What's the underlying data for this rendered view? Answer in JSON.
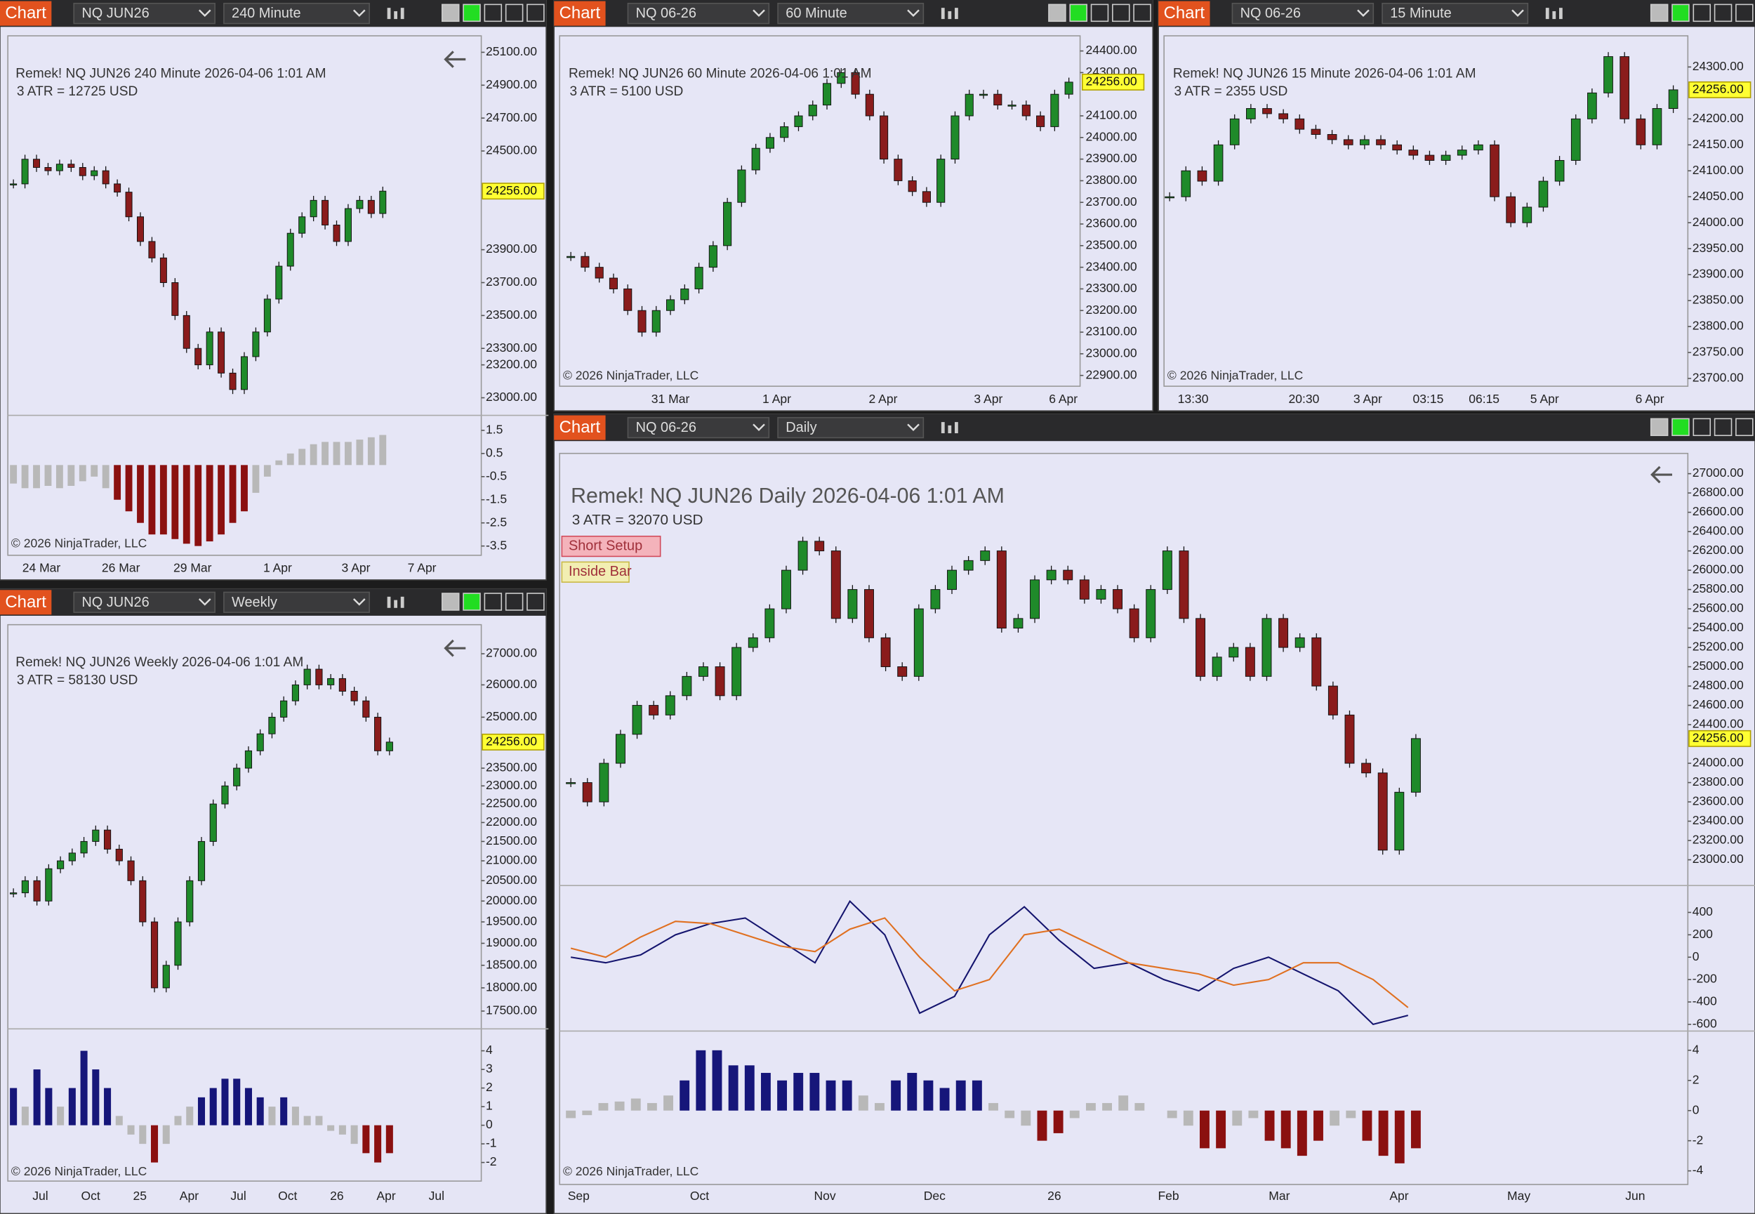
{
  "panels": [
    {
      "toolbar": {
        "label": "Chart",
        "symbol": "NQ JUN26",
        "interval": "240 Minute"
      },
      "info": "Remek!  NQ JUN26  240 Minute  2026-04-06 1:01 AM",
      "atr": "3 ATR = 12725 USD",
      "copyright": "© 2026 NinjaTrader, LLC",
      "last_price": {
        "value": 24256,
        "label": "24256.00"
      },
      "price": {
        "log": false,
        "ylim": [
          22900,
          25200
        ],
        "yticks": [
          {
            "value": 25100,
            "label": "25100.00"
          },
          {
            "value": 24900,
            "label": "24900.00"
          },
          {
            "value": 24700,
            "label": "24700.00"
          },
          {
            "value": 24500,
            "label": "24500.00"
          },
          {
            "value": 23900,
            "label": "23900.00"
          },
          {
            "value": 23700,
            "label": "23700.00"
          },
          {
            "value": 23500,
            "label": "23500.00"
          },
          {
            "value": 23300,
            "label": "23300.00"
          },
          {
            "value": 23200,
            "label": "23200.00"
          },
          {
            "value": 23000,
            "label": "23000.00"
          }
        ],
        "values": [
          24300,
          24450,
          24400,
          24380,
          24420,
          24400,
          24350,
          24380,
          24300,
          24250,
          24100,
          23950,
          23850,
          23700,
          23500,
          23300,
          23200,
          23400,
          23150,
          23050,
          23250,
          23400,
          23600,
          23800,
          24000,
          24100,
          24200,
          24050,
          23950,
          24150,
          24200,
          24120,
          24256
        ]
      },
      "histogram": {
        "ylim": [
          -3.9,
          2.1
        ],
        "yticks": [
          1.5,
          0.5,
          -0.5,
          -1.5,
          -2.5,
          -3.5
        ],
        "values": [
          -0.8,
          -1,
          -1,
          -0.9,
          -1,
          -0.9,
          -0.7,
          -0.5,
          -1,
          -1.5,
          -2,
          -2.5,
          -3,
          -3,
          -3.2,
          -3.4,
          -3.5,
          -3.3,
          -3,
          -2.5,
          -2,
          -1.2,
          -0.5,
          0.2,
          0.5,
          0.7,
          0.9,
          1,
          1,
          1,
          1.1,
          1.2,
          1.3
        ]
      },
      "x_labels": [
        "24 Mar",
        "26 Mar",
        "29 Mar",
        "1 Apr",
        "3 Apr",
        "7 Apr"
      ]
    },
    {
      "toolbar": {
        "label": "Chart",
        "symbol": "NQ 06-26",
        "interval": "60 Minute"
      },
      "info": "Remek!  NQ JUN26  60 Minute  2026-04-06 1:01 AM",
      "atr": "3 ATR = 5100 USD",
      "copyright": "© 2026 NinjaTrader, LLC",
      "last_price": {
        "value": 24256,
        "label": "24256.00"
      },
      "price": {
        "log": false,
        "ylim": [
          22850,
          24470
        ],
        "yticks": [
          {
            "value": 24400,
            "label": "24400.00"
          },
          {
            "value": 24300,
            "label": "24300.00"
          },
          {
            "value": 24100,
            "label": "24100.00"
          },
          {
            "value": 24000,
            "label": "24000.00"
          },
          {
            "value": 23900,
            "label": "23900.00"
          },
          {
            "value": 23800,
            "label": "23800.00"
          },
          {
            "value": 23700,
            "label": "23700.00"
          },
          {
            "value": 23600,
            "label": "23600.00"
          },
          {
            "value": 23500,
            "label": "23500.00"
          },
          {
            "value": 23400,
            "label": "23400.00"
          },
          {
            "value": 23300,
            "label": "23300.00"
          },
          {
            "value": 23200,
            "label": "23200.00"
          },
          {
            "value": 23100,
            "label": "23100.00"
          },
          {
            "value": 23000,
            "label": "23000.00"
          },
          {
            "value": 22900,
            "label": "22900.00"
          }
        ],
        "values": [
          23450,
          23400,
          23350,
          23300,
          23200,
          23100,
          23200,
          23250,
          23300,
          23400,
          23500,
          23700,
          23850,
          23950,
          24000,
          24050,
          24100,
          24150,
          24250,
          24300,
          24200,
          24100,
          23900,
          23800,
          23750,
          23700,
          23900,
          24100,
          24200,
          24200,
          24150,
          24150,
          24100,
          24050,
          24200,
          24256
        ]
      },
      "x_labels": [
        "31 Mar",
        "1 Apr",
        "2 Apr",
        "3 Apr",
        "6 Apr"
      ]
    },
    {
      "toolbar": {
        "label": "Chart",
        "symbol": "NQ 06-26",
        "interval": "15 Minute"
      },
      "info": "Remek!  NQ JUN26  15 Minute  2026-04-06 1:01 AM",
      "atr": "3 ATR = 2355 USD",
      "copyright": "© 2026 NinjaTrader, LLC",
      "last_price": {
        "value": 24256,
        "label": "24256.00"
      },
      "price": {
        "log": false,
        "ylim": [
          23685,
          24360
        ],
        "yticks": [
          {
            "value": 24300,
            "label": "24300.00"
          },
          {
            "value": 24200,
            "label": "24200.00"
          },
          {
            "value": 24150,
            "label": "24150.00"
          },
          {
            "value": 24100,
            "label": "24100.00"
          },
          {
            "value": 24050,
            "label": "24050.00"
          },
          {
            "value": 24000,
            "label": "24000.00"
          },
          {
            "value": 23950,
            "label": "23950.00"
          },
          {
            "value": 23900,
            "label": "23900.00"
          },
          {
            "value": 23850,
            "label": "23850.00"
          },
          {
            "value": 23800,
            "label": "23800.00"
          },
          {
            "value": 23750,
            "label": "23750.00"
          },
          {
            "value": 23700,
            "label": "23700.00"
          }
        ],
        "values": [
          24050,
          24100,
          24080,
          24150,
          24200,
          24220,
          24210,
          24200,
          24180,
          24170,
          24160,
          24150,
          24160,
          24150,
          24140,
          24130,
          24120,
          24130,
          24140,
          24150,
          24050,
          24000,
          24030,
          24080,
          24120,
          24200,
          24250,
          24320,
          24200,
          24150,
          24220,
          24256
        ]
      },
      "x_labels": [
        "13:30",
        "20:30",
        "3 Apr",
        "03:15",
        "06:15",
        "5 Apr",
        "6 Apr"
      ]
    },
    {
      "toolbar": {
        "label": "Chart",
        "symbol": "NQ JUN26",
        "interval": "Weekly"
      },
      "info": "Remek!  NQ JUN26  Weekly  2026-04-06 1:01 AM",
      "atr": "3 ATR = 58130 USD",
      "copyright": "© 2026 NinjaTrader, LLC",
      "last_price": {
        "value": 24256,
        "label": "24256.00"
      },
      "price": {
        "log": true,
        "ylim": [
          17150,
          27970
        ],
        "yticks": [
          {
            "value": 27000,
            "label": "27000.00"
          },
          {
            "value": 26000,
            "label": "26000.00"
          },
          {
            "value": 25000,
            "label": "25000.00"
          },
          {
            "value": 23500,
            "label": "23500.00"
          },
          {
            "value": 23000,
            "label": "23000.00"
          },
          {
            "value": 22500,
            "label": "22500.00"
          },
          {
            "value": 22000,
            "label": "22000.00"
          },
          {
            "value": 21500,
            "label": "21500.00"
          },
          {
            "value": 21000,
            "label": "21000.00"
          },
          {
            "value": 20500,
            "label": "20500.00"
          },
          {
            "value": 20000,
            "label": "20000.00"
          },
          {
            "value": 19500,
            "label": "19500.00"
          },
          {
            "value": 19000,
            "label": "19000.00"
          },
          {
            "value": 18500,
            "label": "18500.00"
          },
          {
            "value": 18000,
            "label": "18000.00"
          },
          {
            "value": 17500,
            "label": "17500.00"
          }
        ],
        "values": [
          20200,
          20500,
          20000,
          20800,
          21000,
          21200,
          21500,
          21800,
          21300,
          21000,
          20500,
          19500,
          18000,
          18500,
          19500,
          20500,
          21500,
          22500,
          23000,
          23500,
          24000,
          24500,
          25000,
          25500,
          26000,
          26500,
          26000,
          26200,
          25800,
          25500,
          25000,
          24000,
          24256
        ]
      },
      "histogram": {
        "ylim": [
          -3,
          5
        ],
        "yticks": [
          4,
          3,
          2,
          1,
          0,
          -1,
          -2
        ],
        "values": [
          2,
          1,
          3,
          2,
          1,
          2,
          4,
          3,
          2,
          0.5,
          -0.5,
          -1,
          -2,
          -1,
          0.5,
          1,
          1.5,
          2,
          2.5,
          2.5,
          2,
          1.5,
          1,
          1.5,
          1,
          0.5,
          0.5,
          -0.3,
          -0.5,
          -1,
          -1.5,
          -2,
          -1.5
        ]
      },
      "x_labels": [
        "Jul",
        "Oct",
        "25",
        "Apr",
        "Jul",
        "Oct",
        "26",
        "Apr",
        "Jul"
      ]
    },
    {
      "toolbar": {
        "label": "Chart",
        "symbol": "NQ 06-26",
        "interval": "Daily"
      },
      "info": "Remek!  NQ JUN26  Daily  2026-04-06 1:01 AM",
      "atr": "3 ATR = 32070 USD",
      "copyright": "© 2026 NinjaTrader, LLC",
      "signals": [
        "Short Setup",
        "Inside Bar"
      ],
      "last_price": {
        "value": 24256,
        "label": "24256.00"
      },
      "price": {
        "log": false,
        "ylim": [
          22745,
          27210
        ],
        "yticks": [
          {
            "value": 27000,
            "label": "27000.00"
          },
          {
            "value": 26800,
            "label": "26800.00"
          },
          {
            "value": 26600,
            "label": "26600.00"
          },
          {
            "value": 26400,
            "label": "26400.00"
          },
          {
            "value": 26200,
            "label": "26200.00"
          },
          {
            "value": 26000,
            "label": "26000.00"
          },
          {
            "value": 25800,
            "label": "25800.00"
          },
          {
            "value": 25600,
            "label": "25600.00"
          },
          {
            "value": 25400,
            "label": "25400.00"
          },
          {
            "value": 25200,
            "label": "25200.00"
          },
          {
            "value": 25000,
            "label": "25000.00"
          },
          {
            "value": 24800,
            "label": "24800.00"
          },
          {
            "value": 24600,
            "label": "24600.00"
          },
          {
            "value": 24400,
            "label": "24400.00"
          },
          {
            "value": 24000,
            "label": "24000.00"
          },
          {
            "value": 23800,
            "label": "23800.00"
          },
          {
            "value": 23600,
            "label": "23600.00"
          },
          {
            "value": 23400,
            "label": "23400.00"
          },
          {
            "value": 23200,
            "label": "23200.00"
          },
          {
            "value": 23000,
            "label": "23000.00"
          }
        ],
        "values": [
          23800,
          23600,
          24000,
          24300,
          24600,
          24500,
          24700,
          24900,
          25000,
          24700,
          25200,
          25300,
          25600,
          26000,
          26300,
          26200,
          25500,
          25800,
          25300,
          25000,
          24900,
          25600,
          25800,
          26000,
          26100,
          26200,
          25400,
          25500,
          25900,
          26000,
          25900,
          25700,
          25800,
          25600,
          25300,
          25800,
          26200,
          25500,
          24900,
          25100,
          25200,
          24900,
          25500,
          25200,
          25300,
          24800,
          24500,
          24000,
          23900,
          23100,
          23700,
          24256
        ]
      },
      "oscillator": {
        "ylim": [
          -650,
          630
        ],
        "yticks": [
          400,
          200,
          0,
          -200,
          -400,
          -600
        ],
        "series": [
          {
            "color": "#14146e",
            "values": [
              0,
              -50,
              20,
              200,
              300,
              350,
              150,
              -50,
              500,
              200,
              -500,
              -350,
              200,
              450,
              150,
              -100,
              -50,
              -200,
              -300,
              -100,
              0,
              -150,
              -300,
              -600,
              -520
            ]
          },
          {
            "color": "#e07020",
            "values": [
              80,
              0,
              180,
              320,
              300,
              200,
              100,
              50,
              250,
              350,
              0,
              -300,
              -200,
              200,
              250,
              100,
              -50,
              -100,
              -150,
              -250,
              -200,
              -50,
              -50,
              -200,
              -450
            ]
          }
        ]
      },
      "histogram": {
        "ylim": [
          -4.9,
          5.2
        ],
        "yticks": [
          4,
          2,
          0,
          -2,
          -4
        ],
        "values": [
          -0.5,
          -0.3,
          0.5,
          0.6,
          0.8,
          0.5,
          1,
          2,
          4,
          4,
          3,
          3,
          2.5,
          2,
          2.5,
          2.5,
          2,
          2,
          1,
          0.5,
          2,
          2.5,
          2,
          1.5,
          2,
          2,
          0.5,
          -0.5,
          -1,
          -2,
          -1.5,
          -0.5,
          0.5,
          0.5,
          1,
          0.5,
          0,
          -0.5,
          -1,
          -2.5,
          -2.5,
          -1,
          -0.5,
          -2,
          -2.5,
          -3,
          -2,
          -1,
          -0.5,
          -2,
          -3,
          -3.5,
          -2.5
        ]
      },
      "x_labels": [
        "Sep",
        "Oct",
        "Nov",
        "Dec",
        "26",
        "Feb",
        "Mar",
        "Apr",
        "May",
        "Jun"
      ]
    }
  ],
  "style": {
    "up": "#1f8a2a",
    "down": "#8a1c1c",
    "hist_strong_up": "#16167a",
    "hist_strong_down": "#8b1010",
    "hist_neutral": "#b8b8b8",
    "marker": "#ffff33"
  }
}
